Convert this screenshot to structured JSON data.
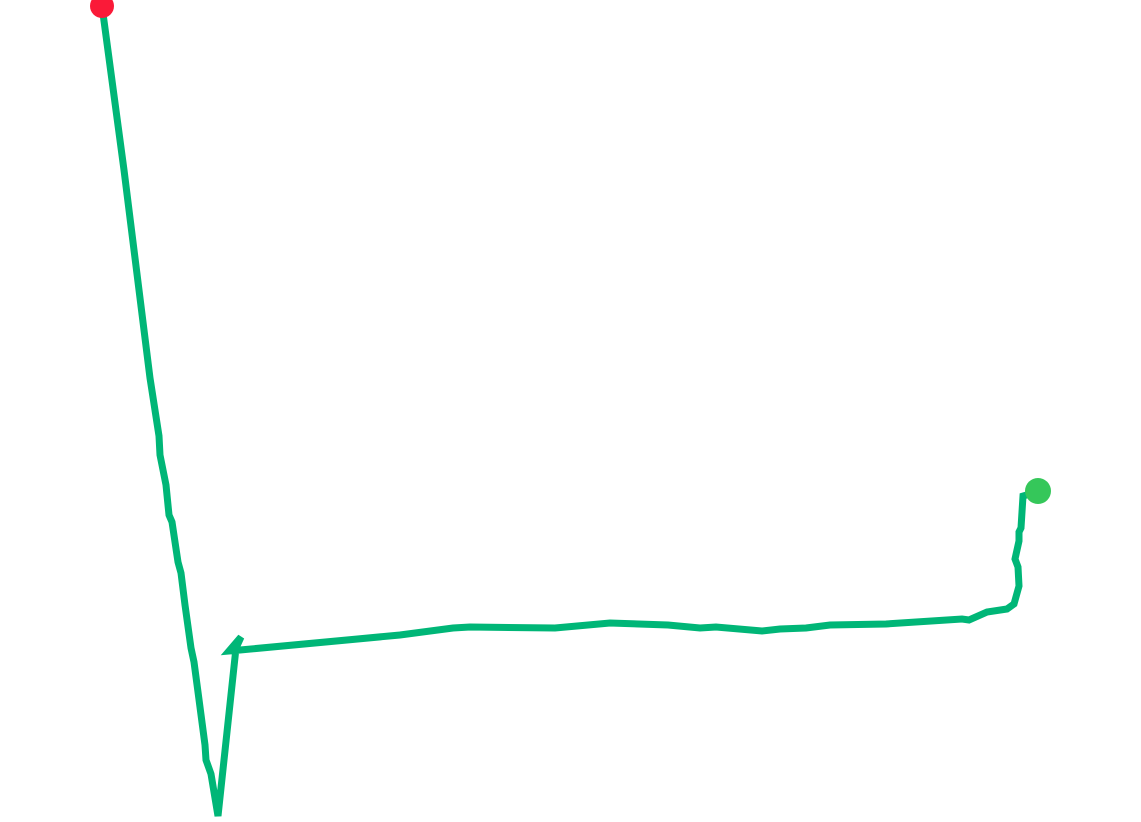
{
  "map": {
    "background_color": "#ffffff",
    "route": {
      "color": "#00b677"
    },
    "start_marker": {
      "color": "#fa1a38",
      "icon": "start-point-dot"
    },
    "end_marker": {
      "color": "#35c75a",
      "icon": "end-point-dot"
    }
  }
}
